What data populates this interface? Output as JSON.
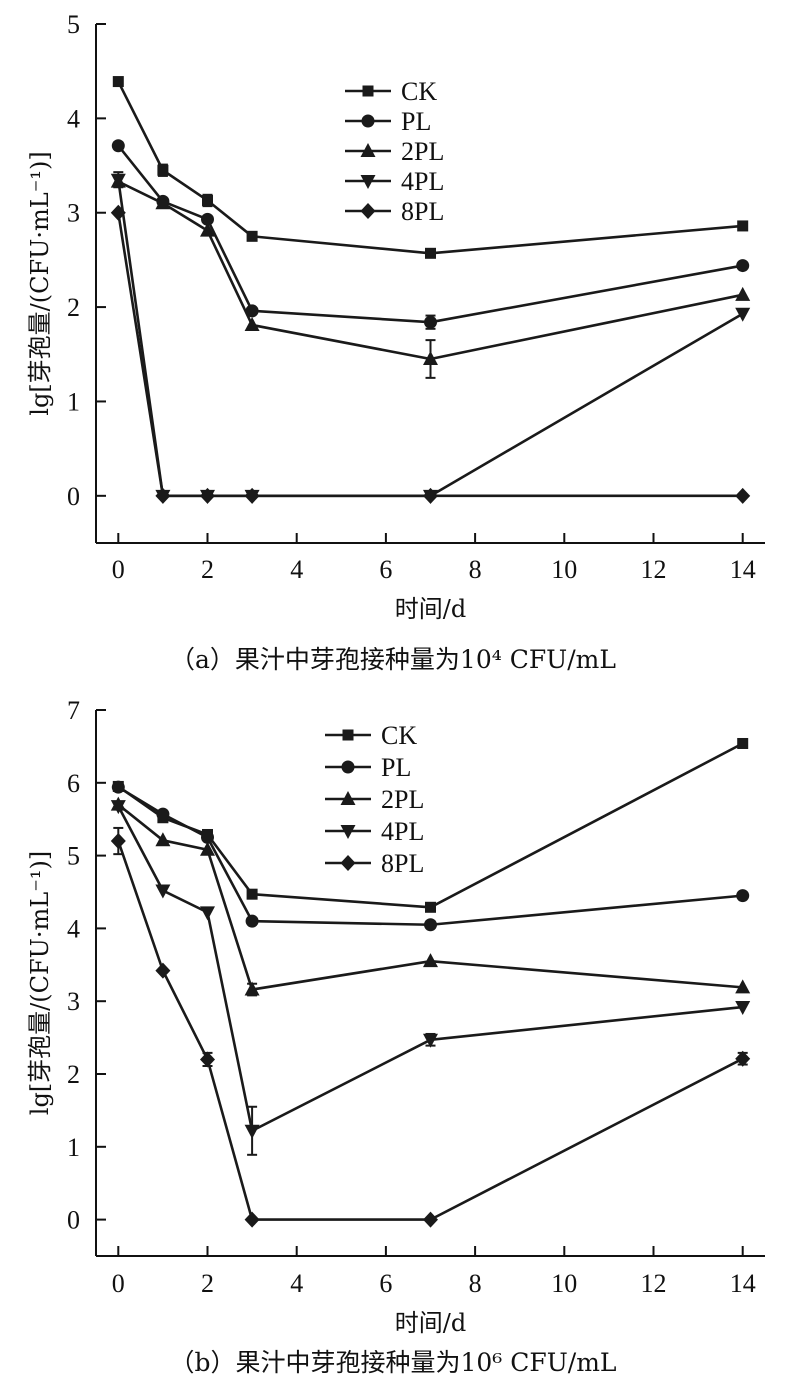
{
  "chart_data": [
    {
      "type": "line",
      "caption": "（a）果汁中芽孢接种量为10⁴ CFU/mL",
      "xlabel": "时间/d",
      "ylabel": "lg[芽孢量/(CFU·mL⁻¹)]",
      "xlim": [
        -0.5,
        14.5
      ],
      "ylim": [
        -0.5,
        5
      ],
      "xticks": [
        0,
        2,
        4,
        6,
        8,
        10,
        12,
        14
      ],
      "yticks": [
        0,
        1,
        2,
        3,
        4,
        5
      ],
      "x": [
        0,
        1,
        2,
        3,
        7,
        14
      ],
      "legend_position": "top-center",
      "series": [
        {
          "name": "CK",
          "marker": "square",
          "values": [
            4.39,
            3.45,
            3.13,
            2.75,
            2.57,
            2.86
          ],
          "errors": [
            0.02,
            0.06,
            0.06,
            0.02,
            0.02,
            0.02
          ]
        },
        {
          "name": "PL",
          "marker": "circle",
          "values": [
            3.71,
            3.12,
            2.93,
            1.96,
            1.84,
            2.44
          ],
          "errors": [
            0.02,
            0.04,
            0.04,
            0.05,
            0.07,
            0.02
          ]
        },
        {
          "name": "2PL",
          "marker": "triangle-up",
          "values": [
            3.33,
            3.1,
            2.81,
            1.81,
            1.45,
            2.13
          ],
          "errors": [
            0.04,
            0.03,
            0.04,
            0.04,
            0.2,
            0.05
          ]
        },
        {
          "name": "4PL",
          "marker": "triangle-down",
          "values": [
            3.35,
            0,
            0,
            0,
            0,
            1.93
          ],
          "errors": [
            0.08,
            0,
            0,
            0,
            0,
            0.03
          ]
        },
        {
          "name": "8PL",
          "marker": "diamond",
          "values": [
            3.0,
            0,
            0,
            0,
            0,
            0
          ],
          "errors": [
            0.02,
            0,
            0,
            0,
            0,
            0
          ]
        }
      ]
    },
    {
      "type": "line",
      "caption": "（b）果汁中芽孢接种量为10⁶ CFU/mL",
      "xlabel": "时间/d",
      "ylabel": "lg[芽孢量/(CFU·mL⁻¹)]",
      "xlim": [
        -0.5,
        14.5
      ],
      "ylim": [
        -0.5,
        7
      ],
      "xticks": [
        0,
        2,
        4,
        6,
        8,
        10,
        12,
        14
      ],
      "yticks": [
        0,
        1,
        2,
        3,
        4,
        5,
        6,
        7
      ],
      "x": [
        0,
        1,
        2,
        3,
        7,
        14
      ],
      "legend_position": "top-center",
      "series": [
        {
          "name": "CK",
          "marker": "square",
          "values": [
            5.95,
            5.52,
            5.29,
            4.47,
            4.29,
            6.54
          ],
          "errors": [
            0.02,
            0.03,
            0.03,
            0.03,
            0.03,
            0.04
          ]
        },
        {
          "name": "PL",
          "marker": "circle",
          "values": [
            5.94,
            5.57,
            5.25,
            4.1,
            4.05,
            4.45
          ],
          "errors": [
            0.02,
            0.03,
            0.03,
            0.03,
            0.02,
            0.02
          ]
        },
        {
          "name": "2PL",
          "marker": "triangle-up",
          "values": [
            5.7,
            5.21,
            5.08,
            3.16,
            3.55,
            3.19
          ],
          "errors": [
            0.05,
            0.04,
            0.04,
            0.08,
            0.03,
            0.03
          ]
        },
        {
          "name": "4PL",
          "marker": "triangle-down",
          "values": [
            5.68,
            4.52,
            4.22,
            1.22,
            2.47,
            2.92
          ],
          "errors": [
            0.05,
            0.04,
            0.04,
            0.33,
            0.08,
            0.04
          ]
        },
        {
          "name": "8PL",
          "marker": "diamond",
          "values": [
            5.2,
            3.42,
            2.2,
            0,
            0,
            2.21
          ],
          "errors": [
            0.18,
            0.04,
            0.09,
            0,
            0,
            0.08
          ]
        }
      ]
    }
  ]
}
